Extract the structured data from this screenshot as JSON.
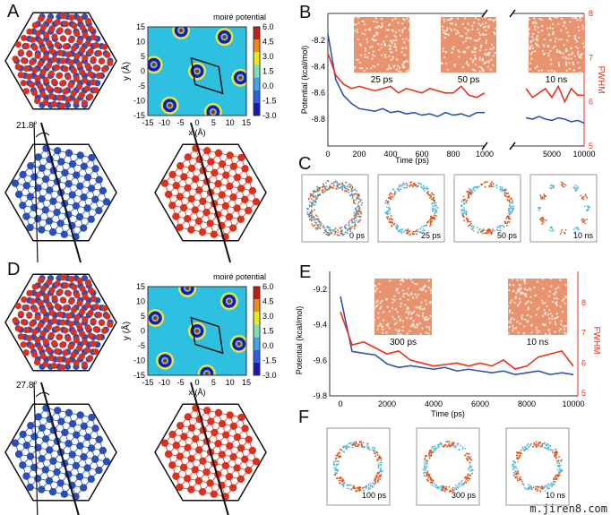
{
  "panels": {
    "a": "A",
    "b": "B",
    "c": "C",
    "d": "D",
    "e": "E",
    "f": "F"
  },
  "colormap": {
    "title": "moiré potential",
    "ticks": [
      "6.0",
      "4.5",
      "3.0",
      "1.5",
      "0.0",
      "-1.5",
      "-3.0"
    ],
    "colors": [
      "#c21d12",
      "#f08a1e",
      "#e8e81a",
      "#7fe0b0",
      "#3aa8e8",
      "#2a5fe0",
      "#1818b8"
    ],
    "x_label": "x (Å)",
    "y_label": "y (Å)",
    "x_ticks": [
      "-15",
      "-10",
      "-5",
      "0",
      "5",
      "10",
      "15"
    ],
    "y_ticks": [
      "15",
      "10",
      "5",
      "0",
      "-5",
      "-10",
      "-15"
    ]
  },
  "angles": {
    "a": "21.8°",
    "d": "27.8°"
  },
  "colors": {
    "potential": "#2f55a8",
    "fwhm": "#e8321e",
    "blue_atom": "#2a4fb5",
    "red_atom": "#d9321e"
  },
  "chart_data": [
    {
      "type": "line",
      "panel": "B",
      "xlabel": "Time (ps)",
      "ylabel": "Potential (kcal/mol)",
      "y2label": "FWHM",
      "ylim": [
        -9.0,
        -8.0
      ],
      "y2lim": [
        5,
        8
      ],
      "x_ticks": [
        "0",
        "200",
        "400",
        "600",
        "800",
        "1000",
        "5000",
        "10000"
      ],
      "y_ticks": [
        "-8.2",
        "-8.4",
        "-8.6",
        "-8.8"
      ],
      "y2_ticks": [
        "5",
        "6",
        "7",
        "8"
      ],
      "axis_break": [
        1000,
        1000
      ],
      "x1": [
        0,
        50,
        100,
        150,
        200,
        250,
        300,
        350,
        400,
        450,
        500,
        550,
        600,
        650,
        700,
        750,
        800,
        850,
        900,
        950,
        1000
      ],
      "series": [
        {
          "name": "Potential",
          "axis": "left",
          "values": [
            -8.15,
            -8.5,
            -8.62,
            -8.68,
            -8.72,
            -8.73,
            -8.74,
            -8.72,
            -8.75,
            -8.74,
            -8.76,
            -8.75,
            -8.77,
            -8.76,
            -8.78,
            -8.75,
            -8.77,
            -8.76,
            -8.78,
            -8.75,
            -8.75
          ]
        },
        {
          "name": "FWHM",
          "axis": "right",
          "values": [
            7.1,
            6.6,
            6.4,
            6.3,
            6.35,
            6.3,
            6.25,
            6.3,
            6.35,
            6.2,
            6.3,
            6.25,
            6.2,
            6.3,
            6.25,
            6.2,
            6.2,
            6.35,
            6.15,
            6.1,
            6.2
          ]
        }
      ],
      "x2": [
        1000,
        2000,
        3000,
        4000,
        5000,
        6000,
        7000,
        8000,
        9000,
        10000
      ],
      "series2": [
        {
          "name": "Potential",
          "axis": "left",
          "values": [
            -8.79,
            -8.8,
            -8.78,
            -8.8,
            -8.81,
            -8.79,
            -8.8,
            -8.82,
            -8.81,
            -8.83
          ]
        },
        {
          "name": "FWHM",
          "axis": "right",
          "values": [
            6.3,
            6.1,
            6.2,
            6.3,
            6.1,
            6.35,
            6.0,
            6.3,
            6.15,
            6.15
          ]
        }
      ],
      "insets": [
        "25 ps",
        "50 ps",
        "10 ns"
      ]
    },
    {
      "type": "line",
      "panel": "E",
      "xlabel": "Time (ps)",
      "ylabel": "Potential (kcal/mol)",
      "y2label": "FWHM",
      "ylim": [
        -9.8,
        -9.1
      ],
      "y2lim": [
        5,
        9
      ],
      "x_ticks": [
        "0",
        "2000",
        "4000",
        "6000",
        "8000",
        "10000"
      ],
      "y_ticks": [
        "-9.2",
        "-9.4",
        "-9.6",
        "-9.8"
      ],
      "y2_ticks": [
        "5",
        "6",
        "7",
        "8"
      ],
      "x": [
        0,
        500,
        1000,
        1500,
        2000,
        2500,
        3000,
        3500,
        4000,
        4500,
        5000,
        5500,
        6000,
        6500,
        7000,
        7500,
        8000,
        8500,
        9000,
        9500,
        10000
      ],
      "series": [
        {
          "name": "Potential",
          "axis": "left",
          "values": [
            -9.24,
            -9.55,
            -9.56,
            -9.57,
            -9.62,
            -9.64,
            -9.63,
            -9.64,
            -9.65,
            -9.64,
            -9.66,
            -9.65,
            -9.66,
            -9.67,
            -9.66,
            -9.68,
            -9.67,
            -9.66,
            -9.68,
            -9.67,
            -9.68
          ]
        },
        {
          "name": "FWHM",
          "axis": "right",
          "values": [
            7.7,
            6.6,
            6.7,
            6.5,
            6.3,
            6.4,
            6.1,
            6.0,
            5.9,
            5.95,
            6.0,
            5.9,
            6.0,
            5.9,
            6.1,
            5.8,
            5.9,
            6.2,
            6.3,
            6.4,
            5.9
          ]
        }
      ],
      "insets": [
        "300 ps",
        "10 ns"
      ]
    }
  ],
  "c_labels": [
    "0 ps",
    "25 ps",
    "50 ps",
    "10 ns"
  ],
  "f_labels": [
    "100 ps",
    "300 ps",
    "10 ns"
  ],
  "watermark": "m.jiren8.com"
}
